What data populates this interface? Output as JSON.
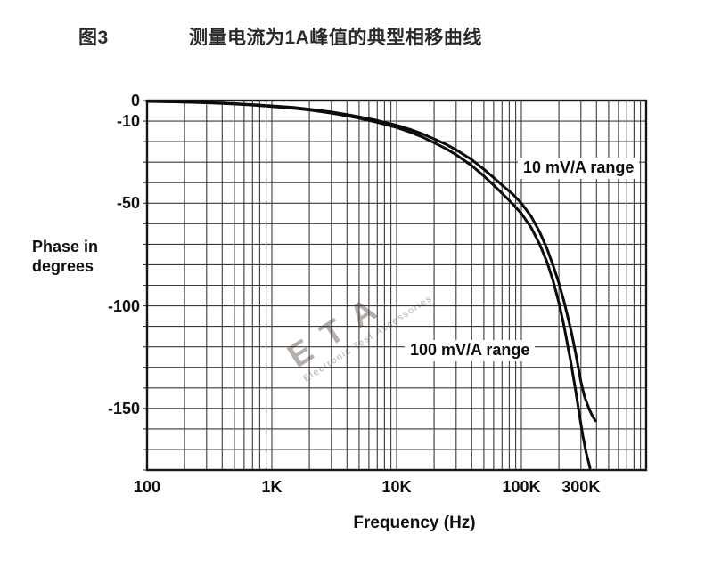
{
  "header": {
    "figure_label": "图3",
    "title": "测量电流为1A峰值的典型相移曲线"
  },
  "chart_data": {
    "type": "line",
    "title": "测量电流为1A峰值的典型相移曲线",
    "xlabel": "Frequency (Hz)",
    "ylabel": "Phase in degrees",
    "grid": "on",
    "colors": {
      "grid": "#3a3a3a",
      "border": "#161616",
      "curve": "#0c0c0c",
      "background": "#ffffff"
    },
    "x_axis": {
      "scale": "log",
      "min": 100,
      "max": 1000000,
      "ticks": [
        {
          "value": 100,
          "label": "100"
        },
        {
          "value": 1000,
          "label": "1K"
        },
        {
          "value": 10000,
          "label": "10K"
        },
        {
          "value": 100000,
          "label": "100K"
        },
        {
          "value": 300000,
          "label": "300K"
        }
      ]
    },
    "y_axis": {
      "scale": "linear",
      "min": -180,
      "max": 0,
      "grid_step": 10,
      "ticks": [
        {
          "value": 0,
          "label": "0"
        },
        {
          "value": -10,
          "label": "-10"
        },
        {
          "value": -50,
          "label": "-50"
        },
        {
          "value": -100,
          "label": "-100"
        },
        {
          "value": -150,
          "label": "-150"
        }
      ]
    },
    "series": [
      {
        "name": "10 mV/A range",
        "points": [
          [
            100,
            -0.4
          ],
          [
            150,
            -0.55
          ],
          [
            200,
            -0.7
          ],
          [
            300,
            -1.0
          ],
          [
            400,
            -1.25
          ],
          [
            500,
            -1.5
          ],
          [
            700,
            -2.0
          ],
          [
            1000,
            -2.6
          ],
          [
            1500,
            -3.4
          ],
          [
            2000,
            -4.2
          ],
          [
            3000,
            -5.6
          ],
          [
            4000,
            -6.8
          ],
          [
            5000,
            -7.9
          ],
          [
            7000,
            -9.7
          ],
          [
            10000,
            -12
          ],
          [
            13000,
            -14.2
          ],
          [
            16000,
            -16.2
          ],
          [
            20000,
            -18.7
          ],
          [
            25000,
            -21.4
          ],
          [
            30000,
            -24
          ],
          [
            40000,
            -28.8
          ],
          [
            50000,
            -33.5
          ],
          [
            60000,
            -37.5
          ],
          [
            70000,
            -41.2
          ],
          [
            85000,
            -45.5
          ],
          [
            100000,
            -50
          ],
          [
            120000,
            -56.5
          ],
          [
            140000,
            -64
          ],
          [
            160000,
            -72
          ],
          [
            180000,
            -80.5
          ],
          [
            200000,
            -89
          ],
          [
            220000,
            -98
          ],
          [
            250000,
            -112
          ],
          [
            270000,
            -122
          ],
          [
            300000,
            -137
          ],
          [
            320000,
            -144
          ],
          [
            350000,
            -150.5
          ],
          [
            370000,
            -153.5
          ],
          [
            392000,
            -156
          ]
        ]
      },
      {
        "name": "100 mV/A range",
        "points": [
          [
            100,
            -0.45
          ],
          [
            150,
            -0.6
          ],
          [
            200,
            -0.8
          ],
          [
            300,
            -1.1
          ],
          [
            400,
            -1.4
          ],
          [
            500,
            -1.7
          ],
          [
            700,
            -2.2
          ],
          [
            1000,
            -2.9
          ],
          [
            1500,
            -3.8
          ],
          [
            2000,
            -4.6
          ],
          [
            3000,
            -6.1
          ],
          [
            4000,
            -7.4
          ],
          [
            5000,
            -8.6
          ],
          [
            7000,
            -10.6
          ],
          [
            10000,
            -13.1
          ],
          [
            13000,
            -15.5
          ],
          [
            16000,
            -17.7
          ],
          [
            20000,
            -20.5
          ],
          [
            25000,
            -23.5
          ],
          [
            30000,
            -26.4
          ],
          [
            40000,
            -31.7
          ],
          [
            50000,
            -36.8
          ],
          [
            60000,
            -41.2
          ],
          [
            70000,
            -45.2
          ],
          [
            85000,
            -50.3
          ],
          [
            100000,
            -55
          ],
          [
            120000,
            -62
          ],
          [
            140000,
            -70
          ],
          [
            160000,
            -78.5
          ],
          [
            180000,
            -88
          ],
          [
            200000,
            -98.5
          ],
          [
            220000,
            -110
          ],
          [
            250000,
            -128
          ],
          [
            270000,
            -140
          ],
          [
            290000,
            -152
          ],
          [
            310000,
            -163
          ],
          [
            330000,
            -171.5
          ],
          [
            345000,
            -176
          ],
          [
            355000,
            -179
          ]
        ]
      }
    ]
  },
  "watermark": {
    "text": "ETA",
    "subtext": "Electronic Test Accessories",
    "color": "#9a908a"
  }
}
